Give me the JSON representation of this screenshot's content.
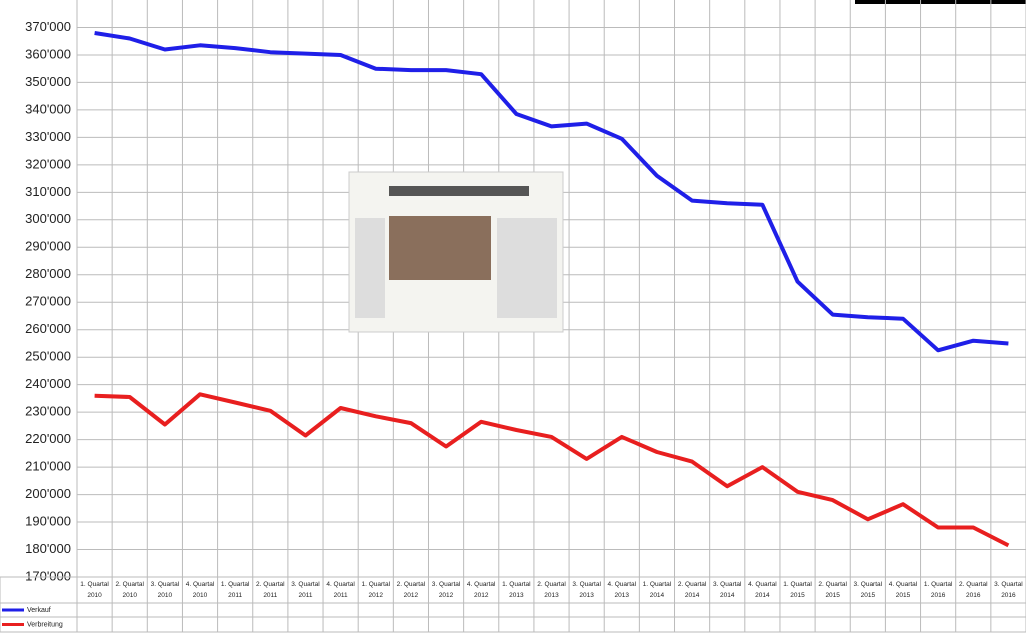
{
  "chart_data": {
    "type": "line",
    "categories": [
      "1. Quartal 2010",
      "2. Quartal 2010",
      "3. Quartal 2010",
      "4. Quartal 2010",
      "1. Quartal 2011",
      "2. Quartal 2011",
      "3. Quartal 2011",
      "4. Quartal 2011",
      "1. Quartal 2012",
      "2. Quartal 2012",
      "3. Quartal 2012",
      "4. Quartal 2012",
      "1. Quartal 2013",
      "2. Quartal 2013",
      "3. Quartal 2013",
      "4. Quartal 2013",
      "1. Quartal 2014",
      "2. Quartal 2014",
      "3. Quartal 2014",
      "4. Quartal 2014",
      "1. Quartal 2015",
      "2. Quartal 2015",
      "3. Quartal 2015",
      "4. Quartal 2015",
      "1. Quartal 2016",
      "2. Quartal 2016",
      "3. Quartal 2016"
    ],
    "series": [
      {
        "name": "Verkauf",
        "color": "#1f1fe8",
        "values": [
          368000,
          366000,
          362000,
          363500,
          362500,
          361000,
          360500,
          360000,
          355000,
          354500,
          354500,
          353000,
          338500,
          334000,
          335000,
          329500,
          316000,
          307000,
          306000,
          305500,
          277500,
          265500,
          264500,
          264000,
          252500,
          256000,
          255000
        ]
      },
      {
        "name": "Verbreitung",
        "color": "#e81f1f",
        "values": [
          236000,
          235500,
          225500,
          236500,
          233500,
          230500,
          221500,
          231500,
          228500,
          226000,
          217500,
          226500,
          223500,
          221000,
          213000,
          221000,
          215500,
          212000,
          203000,
          210000,
          201000,
          198000,
          191000,
          196500,
          188000,
          188000,
          181500
        ]
      }
    ],
    "ylim": [
      170000,
      380000
    ],
    "yticks": [
      {
        "value": 170000,
        "label": "170'000"
      },
      {
        "value": 180000,
        "label": "180'000"
      },
      {
        "value": 190000,
        "label": "190'000"
      },
      {
        "value": 200000,
        "label": "200'000"
      },
      {
        "value": 210000,
        "label": "210'000"
      },
      {
        "value": 220000,
        "label": "220'000"
      },
      {
        "value": 230000,
        "label": "230'000"
      },
      {
        "value": 240000,
        "label": "240'000"
      },
      {
        "value": 250000,
        "label": "250'000"
      },
      {
        "value": 260000,
        "label": "260'000"
      },
      {
        "value": 270000,
        "label": "270'000"
      },
      {
        "value": 280000,
        "label": "280'000"
      },
      {
        "value": 290000,
        "label": "290'000"
      },
      {
        "value": 300000,
        "label": "300'000"
      },
      {
        "value": 310000,
        "label": "310'000"
      },
      {
        "value": 320000,
        "label": "320'000"
      },
      {
        "value": 330000,
        "label": "330'000"
      },
      {
        "value": 340000,
        "label": "340'000"
      },
      {
        "value": 350000,
        "label": "350'000"
      },
      {
        "value": 360000,
        "label": "360'000"
      },
      {
        "value": 370000,
        "label": "370'000"
      }
    ],
    "grid": true
  }
}
